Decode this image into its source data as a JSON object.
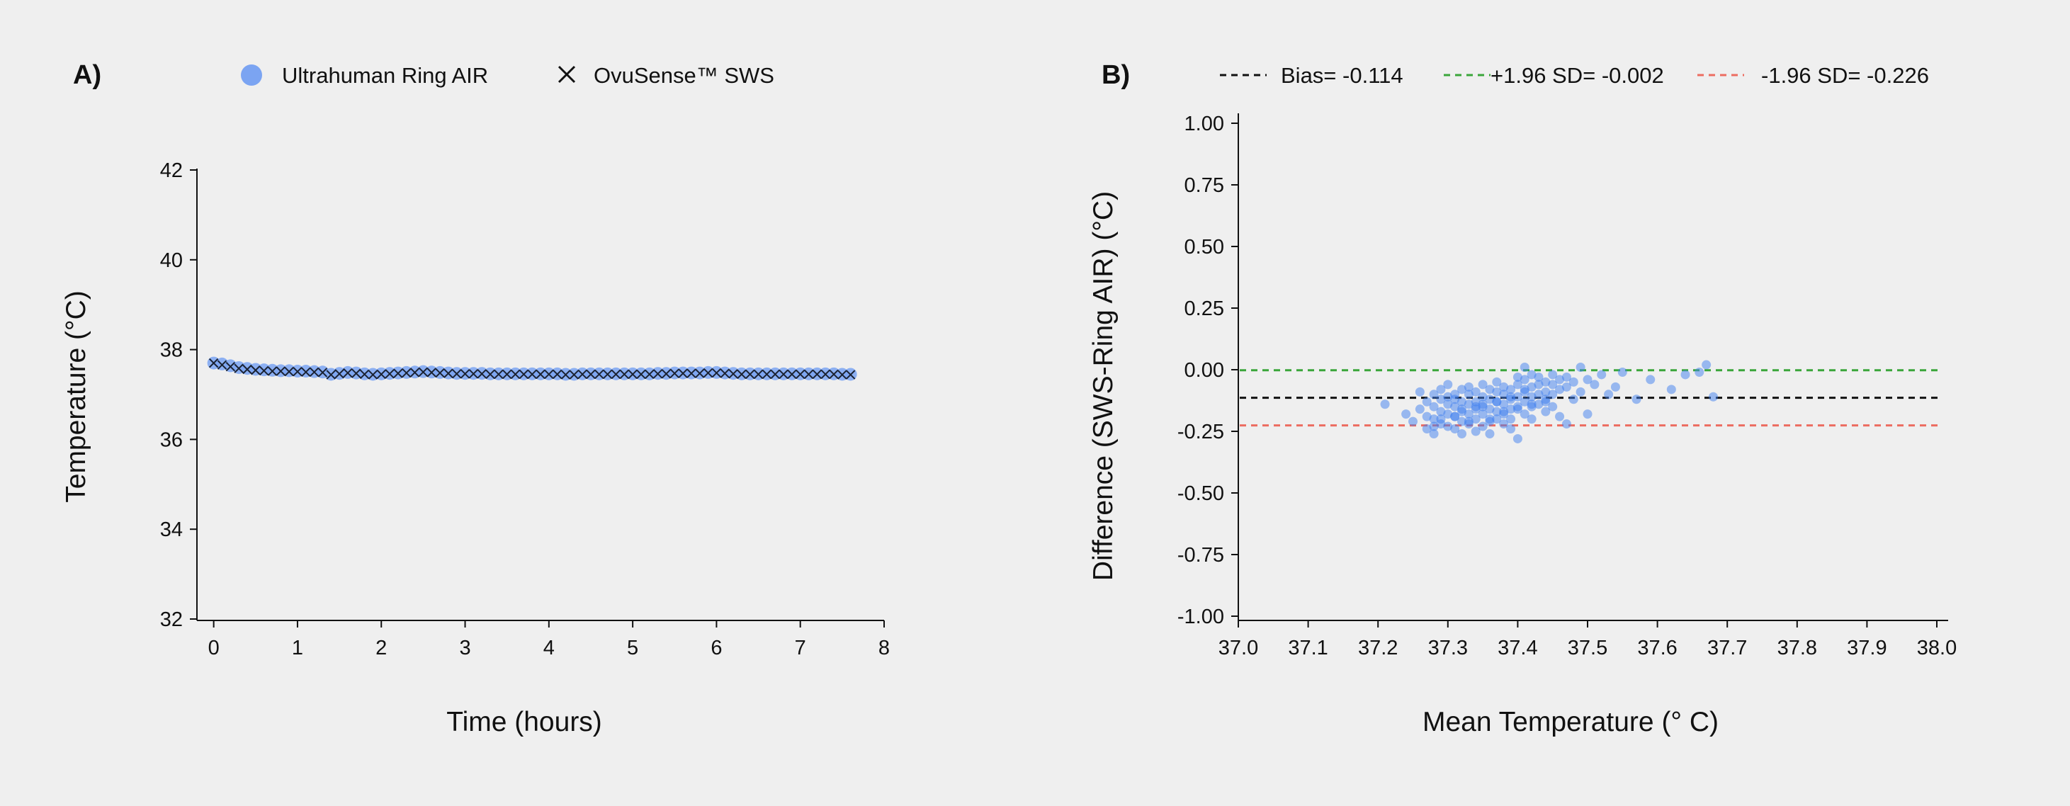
{
  "chart_data": [
    {
      "type": "line",
      "panel_label": "A)",
      "xlabel": "Time (hours)",
      "ylabel": "Temperature (°C)",
      "xlim": [
        -0.2,
        8
      ],
      "ylim": [
        32,
        42
      ],
      "xticks": [
        0,
        1,
        2,
        3,
        4,
        5,
        6,
        7,
        8
      ],
      "xtick_labels": [
        "0",
        "1",
        "2",
        "3",
        "4",
        "5",
        "6",
        "7",
        "8"
      ],
      "yticks": [
        32,
        34,
        36,
        38,
        40,
        42
      ],
      "ytick_labels": [
        "32",
        "34",
        "36",
        "38",
        "40",
        "42"
      ],
      "grid": false,
      "legend_position": "top",
      "series": [
        {
          "name": "Ultrahuman Ring AIR",
          "marker": "circle",
          "color": "#7ba4f2",
          "x": [
            0,
            0.1,
            0.2,
            0.3,
            0.4,
            0.5,
            0.6,
            0.7,
            0.8,
            0.9,
            1,
            1.1,
            1.2,
            1.3,
            1.4,
            1.5,
            1.6,
            1.7,
            1.8,
            1.9,
            2,
            2.1,
            2.2,
            2.3,
            2.4,
            2.5,
            2.6,
            2.7,
            2.8,
            2.9,
            3,
            3.1,
            3.2,
            3.3,
            3.4,
            3.5,
            3.6,
            3.7,
            3.8,
            3.9,
            4,
            4.1,
            4.2,
            4.3,
            4.4,
            4.5,
            4.6,
            4.7,
            4.8,
            4.9,
            5,
            5.1,
            5.2,
            5.3,
            5.4,
            5.5,
            5.6,
            5.7,
            5.8,
            5.9,
            6,
            6.1,
            6.2,
            6.3,
            6.4,
            6.5,
            6.6,
            6.7,
            6.8,
            6.9,
            7,
            7.1,
            7.2,
            7.3,
            7.4,
            7.5,
            7.6
          ],
          "values": [
            37.7,
            37.68,
            37.64,
            37.6,
            37.58,
            37.56,
            37.55,
            37.54,
            37.53,
            37.53,
            37.52,
            37.52,
            37.51,
            37.5,
            37.45,
            37.47,
            37.49,
            37.48,
            37.46,
            37.45,
            37.46,
            37.47,
            37.48,
            37.49,
            37.5,
            37.51,
            37.5,
            37.49,
            37.48,
            37.47,
            37.47,
            37.47,
            37.47,
            37.46,
            37.46,
            37.46,
            37.46,
            37.46,
            37.46,
            37.46,
            37.46,
            37.46,
            37.45,
            37.45,
            37.46,
            37.46,
            37.46,
            37.46,
            37.46,
            37.46,
            37.46,
            37.46,
            37.46,
            37.47,
            37.47,
            37.48,
            37.48,
            37.48,
            37.48,
            37.49,
            37.49,
            37.48,
            37.47,
            37.46,
            37.46,
            37.46,
            37.46,
            37.46,
            37.46,
            37.46,
            37.46,
            37.46,
            37.46,
            37.46,
            37.46,
            37.45,
            37.45
          ]
        },
        {
          "name": "OvuSense™ SWS",
          "marker": "x",
          "color": "#1a2233",
          "x": [
            0,
            0.1,
            0.2,
            0.3,
            0.4,
            0.5,
            0.6,
            0.7,
            0.8,
            0.9,
            1,
            1.1,
            1.2,
            1.3,
            1.4,
            1.5,
            1.6,
            1.7,
            1.8,
            1.9,
            2,
            2.1,
            2.2,
            2.3,
            2.4,
            2.5,
            2.6,
            2.7,
            2.8,
            2.9,
            3,
            3.1,
            3.2,
            3.3,
            3.4,
            3.5,
            3.6,
            3.7,
            3.8,
            3.9,
            4,
            4.1,
            4.2,
            4.3,
            4.4,
            4.5,
            4.6,
            4.7,
            4.8,
            4.9,
            5,
            5.1,
            5.2,
            5.3,
            5.4,
            5.5,
            5.6,
            5.7,
            5.8,
            5.9,
            6,
            6.1,
            6.2,
            6.3,
            6.4,
            6.5,
            6.6,
            6.7,
            6.8,
            6.9,
            7,
            7.1,
            7.2,
            7.3,
            7.4,
            7.5,
            7.6
          ],
          "values": [
            37.7,
            37.66,
            37.62,
            37.58,
            37.56,
            37.54,
            37.53,
            37.52,
            37.52,
            37.51,
            37.51,
            37.5,
            37.5,
            37.49,
            37.44,
            37.46,
            37.48,
            37.47,
            37.45,
            37.44,
            37.45,
            37.46,
            37.47,
            37.48,
            37.49,
            37.5,
            37.49,
            37.48,
            37.47,
            37.46,
            37.46,
            37.46,
            37.46,
            37.45,
            37.45,
            37.45,
            37.45,
            37.45,
            37.45,
            37.45,
            37.45,
            37.45,
            37.44,
            37.44,
            37.45,
            37.45,
            37.45,
            37.45,
            37.45,
            37.45,
            37.45,
            37.45,
            37.45,
            37.46,
            37.46,
            37.47,
            37.47,
            37.47,
            37.47,
            37.48,
            37.48,
            37.47,
            37.46,
            37.45,
            37.45,
            37.45,
            37.45,
            37.45,
            37.45,
            37.45,
            37.45,
            37.45,
            37.45,
            37.45,
            37.45,
            37.44,
            37.44
          ]
        }
      ]
    },
    {
      "type": "scatter",
      "panel_label": "B)",
      "xlabel": "Mean Temperature (° C)",
      "ylabel": "Difference (SWS-Ring AIR)  (°C)",
      "xlim": [
        37.0,
        38.0
      ],
      "ylim": [
        -1.0,
        1.0
      ],
      "xticks": [
        37.0,
        37.1,
        37.2,
        37.3,
        37.4,
        37.5,
        37.6,
        37.7,
        37.8,
        37.9,
        38.0
      ],
      "xtick_labels": [
        "37.0",
        "37.1",
        "37.2",
        "37.3",
        "37.4",
        "37.5",
        "37.6",
        "37.7",
        "37.8",
        "37.9",
        "38.0"
      ],
      "yticks": [
        1.0,
        0.75,
        0.5,
        0.25,
        0.0,
        -0.25,
        -0.5,
        -0.75,
        -1.0
      ],
      "ytick_labels": [
        "1.00",
        "0.75",
        "0.50",
        "0.25",
        "0.00",
        "-0.25",
        "-0.50",
        "-0.75",
        "-1.00"
      ],
      "grid": false,
      "legend_position": "top",
      "color": "#3f7ff0",
      "reference_lines": [
        {
          "label": "Bias= -0.114",
          "y": -0.114,
          "color": "#111111"
        },
        {
          "label": "+1.96 SD= -0.002",
          "y": -0.002,
          "color": "#3aa63a"
        },
        {
          "label": "-1.96 SD= -0.226",
          "y": -0.226,
          "color": "#ec6c60"
        }
      ],
      "x": [
        37.21,
        37.24,
        37.25,
        37.26,
        37.26,
        37.27,
        37.27,
        37.27,
        37.28,
        37.28,
        37.28,
        37.28,
        37.29,
        37.29,
        37.29,
        37.29,
        37.3,
        37.3,
        37.3,
        37.3,
        37.3,
        37.31,
        37.31,
        37.31,
        37.31,
        37.31,
        37.32,
        37.32,
        37.32,
        37.32,
        37.32,
        37.33,
        37.33,
        37.33,
        37.33,
        37.33,
        37.34,
        37.34,
        37.34,
        37.34,
        37.34,
        37.35,
        37.35,
        37.35,
        37.35,
        37.35,
        37.36,
        37.36,
        37.36,
        37.36,
        37.36,
        37.37,
        37.37,
        37.37,
        37.37,
        37.37,
        37.38,
        37.38,
        37.38,
        37.38,
        37.38,
        37.39,
        37.39,
        37.39,
        37.39,
        37.39,
        37.4,
        37.4,
        37.4,
        37.4,
        37.4,
        37.41,
        37.41,
        37.41,
        37.41,
        37.41,
        37.42,
        37.42,
        37.42,
        37.42,
        37.42,
        37.43,
        37.43,
        37.43,
        37.43,
        37.44,
        37.44,
        37.44,
        37.44,
        37.45,
        37.45,
        37.45,
        37.45,
        37.46,
        37.46,
        37.46,
        37.47,
        37.47,
        37.47,
        37.48,
        37.48,
        37.49,
        37.49,
        37.5,
        37.5,
        37.51,
        37.52,
        37.53,
        37.54,
        37.55,
        37.57,
        37.59,
        37.62,
        37.64,
        37.66,
        37.67,
        37.68,
        37.28,
        37.29,
        37.31,
        37.33,
        37.36,
        37.38,
        37.4,
        37.42,
        37.44,
        37.34,
        37.37,
        37.39,
        37.32,
        37.35,
        37.41
      ],
      "values": [
        -0.14,
        -0.18,
        -0.21,
        -0.16,
        -0.09,
        -0.13,
        -0.19,
        -0.24,
        -0.1,
        -0.15,
        -0.2,
        -0.26,
        -0.12,
        -0.17,
        -0.22,
        -0.08,
        -0.11,
        -0.14,
        -0.18,
        -0.23,
        -0.06,
        -0.1,
        -0.15,
        -0.19,
        -0.24,
        -0.12,
        -0.08,
        -0.13,
        -0.17,
        -0.21,
        -0.26,
        -0.1,
        -0.14,
        -0.18,
        -0.22,
        -0.07,
        -0.09,
        -0.13,
        -0.16,
        -0.2,
        -0.25,
        -0.11,
        -0.15,
        -0.18,
        -0.23,
        -0.06,
        -0.08,
        -0.12,
        -0.16,
        -0.21,
        -0.26,
        -0.09,
        -0.13,
        -0.17,
        -0.2,
        -0.05,
        -0.1,
        -0.14,
        -0.18,
        -0.22,
        -0.07,
        -0.08,
        -0.12,
        -0.16,
        -0.2,
        -0.24,
        -0.03,
        -0.06,
        -0.11,
        -0.15,
        -0.28,
        0.01,
        -0.04,
        -0.08,
        -0.13,
        -0.18,
        -0.02,
        -0.07,
        -0.11,
        -0.15,
        -0.2,
        -0.03,
        -0.06,
        -0.1,
        -0.14,
        -0.05,
        -0.09,
        -0.13,
        -0.17,
        -0.02,
        -0.06,
        -0.1,
        -0.15,
        -0.04,
        -0.08,
        -0.19,
        -0.03,
        -0.07,
        -0.22,
        -0.05,
        -0.12,
        0.01,
        -0.09,
        -0.04,
        -0.18,
        -0.06,
        -0.02,
        -0.1,
        -0.07,
        -0.01,
        -0.12,
        -0.04,
        -0.08,
        -0.02,
        -0.01,
        0.02,
        -0.11,
        -0.23,
        -0.2,
        -0.19,
        -0.21,
        -0.2,
        -0.17,
        -0.16,
        -0.14,
        -0.12,
        -0.15,
        -0.13,
        -0.11,
        -0.16,
        -0.14,
        -0.09
      ]
    }
  ]
}
